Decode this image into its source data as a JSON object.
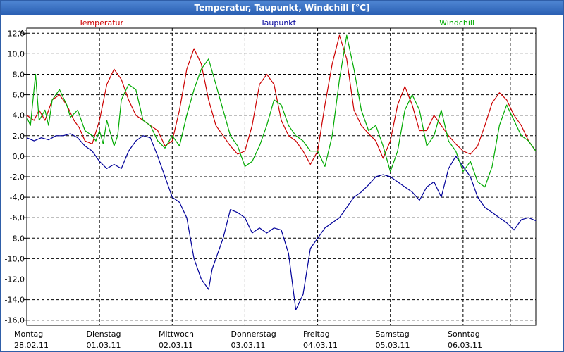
{
  "window": {
    "title": "Temperatur, Taupunkt, Windchill [°C]"
  },
  "chart_data": {
    "type": "line",
    "title": "Temperatur, Taupunkt, Windchill [°C]",
    "ylabel": "°C",
    "ylim": [
      -16.5,
      12.5
    ],
    "yticks": [
      12,
      10,
      8,
      6,
      4,
      2,
      0,
      -2,
      -4,
      -6,
      -8,
      -10,
      -12,
      -14,
      -16
    ],
    "ytick_labels": [
      "12,0",
      "10,0",
      "8,0",
      "6,0",
      "4,0",
      "2,0",
      "0,0",
      "-2,0",
      "-4,0",
      "-6,0",
      "-8,0",
      "-10,0",
      "-12,0",
      "-14,0",
      "-16,0"
    ],
    "xlim": [
      0,
      7
    ],
    "xticks": [
      1,
      2,
      3,
      4,
      5,
      6,
      6.65
    ],
    "x_day_labels": [
      {
        "day": "Montag",
        "date": "28.02.11"
      },
      {
        "day": "Dienstag",
        "date": "01.03.11"
      },
      {
        "day": "Mittwoch",
        "date": "02.03.11"
      },
      {
        "day": "Donnerstag",
        "date": "03.03.11"
      },
      {
        "day": "Freitag",
        "date": "04.03.11"
      },
      {
        "day": "Samstag",
        "date": "05.03.11"
      },
      {
        "day": "Sonntag",
        "date": "06.03.11"
      }
    ],
    "grid": true,
    "series": [
      {
        "name": "Temperatur",
        "color": "#cc0000",
        "x": [
          0,
          0.1,
          0.17,
          0.25,
          0.35,
          0.45,
          0.55,
          0.65,
          0.72,
          0.8,
          0.9,
          1.0,
          1.1,
          1.2,
          1.3,
          1.4,
          1.5,
          1.6,
          1.7,
          1.8,
          1.9,
          2.0,
          2.1,
          2.2,
          2.3,
          2.4,
          2.5,
          2.6,
          2.7,
          2.8,
          2.9,
          3.0,
          3.1,
          3.2,
          3.3,
          3.4,
          3.5,
          3.6,
          3.7,
          3.8,
          3.9,
          4.0,
          4.1,
          4.2,
          4.3,
          4.4,
          4.5,
          4.6,
          4.7,
          4.8,
          4.9,
          5.0,
          5.1,
          5.2,
          5.3,
          5.4,
          5.5,
          5.6,
          5.7,
          5.8,
          5.9,
          6.0,
          6.1,
          6.2,
          6.3,
          6.4,
          6.5,
          6.6,
          6.7,
          6.8,
          6.9,
          7.0
        ],
        "values": [
          4,
          3.5,
          4.5,
          3.5,
          5.5,
          6,
          5,
          3.5,
          2.8,
          1.5,
          1.2,
          3.5,
          7,
          8.5,
          7.5,
          5.5,
          4,
          3.5,
          3,
          2.5,
          1,
          1.5,
          4.5,
          8.5,
          10.5,
          9,
          5.5,
          3,
          2,
          1,
          0.2,
          0.5,
          3,
          7,
          8,
          7,
          3.5,
          2,
          1.5,
          0.5,
          -0.8,
          0.5,
          5,
          9,
          11.8,
          9.5,
          4.5,
          3,
          2.2,
          1.5,
          -0.2,
          1.5,
          5,
          6.8,
          5,
          2.5,
          2.5,
          4,
          3,
          2,
          1.2,
          0.5,
          0.2,
          1,
          3,
          5.2,
          6.2,
          5.5,
          4,
          3,
          1.5,
          0.5
        ]
      },
      {
        "name": "Taupunkt",
        "color": "#000099",
        "x": [
          0,
          0.1,
          0.2,
          0.3,
          0.4,
          0.5,
          0.6,
          0.7,
          0.8,
          0.9,
          1.0,
          1.1,
          1.2,
          1.3,
          1.4,
          1.5,
          1.6,
          1.7,
          1.8,
          1.9,
          2.0,
          2.1,
          2.2,
          2.3,
          2.4,
          2.5,
          2.55,
          2.6,
          2.7,
          2.8,
          2.9,
          3.0,
          3.1,
          3.2,
          3.3,
          3.4,
          3.5,
          3.6,
          3.7,
          3.8,
          3.9,
          4.0,
          4.1,
          4.2,
          4.3,
          4.4,
          4.5,
          4.6,
          4.7,
          4.8,
          4.9,
          5.0,
          5.1,
          5.2,
          5.3,
          5.4,
          5.5,
          5.6,
          5.7,
          5.8,
          5.9,
          6.0,
          6.1,
          6.2,
          6.3,
          6.4,
          6.5,
          6.6,
          6.7,
          6.8,
          6.9,
          7.0
        ],
        "values": [
          1.8,
          1.5,
          1.8,
          1.6,
          2,
          2,
          2.2,
          1.8,
          1,
          0.5,
          -0.5,
          -1.2,
          -0.8,
          -1.2,
          0.5,
          1.5,
          2,
          1.8,
          0,
          -2,
          -4,
          -4.5,
          -6,
          -10,
          -12,
          -13,
          -11,
          -10,
          -8,
          -5.2,
          -5.5,
          -6,
          -7.5,
          -7,
          -7.5,
          -7,
          -7.2,
          -9.5,
          -15,
          -13.5,
          -9,
          -8,
          -7,
          -6.5,
          -6,
          -5,
          -4,
          -3.5,
          -2.8,
          -2,
          -1.8,
          -2,
          -2.5,
          -3,
          -3.5,
          -4.3,
          -3,
          -2.5,
          -4,
          -1.2,
          0,
          -1,
          -2,
          -4,
          -5,
          -5.5,
          -6,
          -6.5,
          -7.2,
          -6.2,
          -6,
          -6.3
        ]
      },
      {
        "name": "Windchill",
        "color": "#00aa00",
        "x": [
          0,
          0.05,
          0.12,
          0.17,
          0.25,
          0.3,
          0.35,
          0.45,
          0.55,
          0.6,
          0.7,
          0.8,
          0.9,
          0.95,
          1.0,
          1.05,
          1.1,
          1.2,
          1.25,
          1.3,
          1.4,
          1.5,
          1.6,
          1.7,
          1.8,
          1.9,
          2.0,
          2.1,
          2.2,
          2.3,
          2.4,
          2.5,
          2.6,
          2.7,
          2.8,
          2.9,
          3.0,
          3.1,
          3.2,
          3.3,
          3.4,
          3.5,
          3.6,
          3.7,
          3.8,
          3.9,
          4.0,
          4.1,
          4.2,
          4.3,
          4.4,
          4.5,
          4.6,
          4.7,
          4.8,
          4.9,
          5.0,
          5.1,
          5.2,
          5.3,
          5.4,
          5.5,
          5.6,
          5.7,
          5.8,
          5.9,
          6.0,
          6.1,
          6.2,
          6.3,
          6.4,
          6.5,
          6.6,
          6.7,
          6.8,
          6.9,
          7.0
        ],
        "values": [
          3.8,
          3,
          8,
          3.5,
          4.5,
          3,
          5.5,
          6.5,
          5,
          3.8,
          4.5,
          2.5,
          2,
          1.5,
          2.5,
          1.2,
          3.5,
          1,
          2,
          5.5,
          7,
          6.5,
          3.5,
          3,
          1.5,
          0.8,
          2,
          1,
          4,
          6.5,
          8.5,
          9.5,
          7,
          4.5,
          2,
          1,
          -1,
          -0.5,
          1,
          3,
          5.5,
          5,
          3,
          2,
          1.5,
          0.5,
          0.5,
          -1,
          2,
          7.5,
          11.8,
          8.5,
          4.5,
          2.5,
          3,
          1,
          -1.5,
          0.5,
          4.5,
          6,
          4.5,
          1,
          2,
          4.5,
          1.5,
          0.5,
          -1.5,
          -0.5,
          -2.5,
          -3,
          -1,
          3,
          5,
          3.5,
          2,
          1.5,
          0.5
        ]
      }
    ]
  }
}
